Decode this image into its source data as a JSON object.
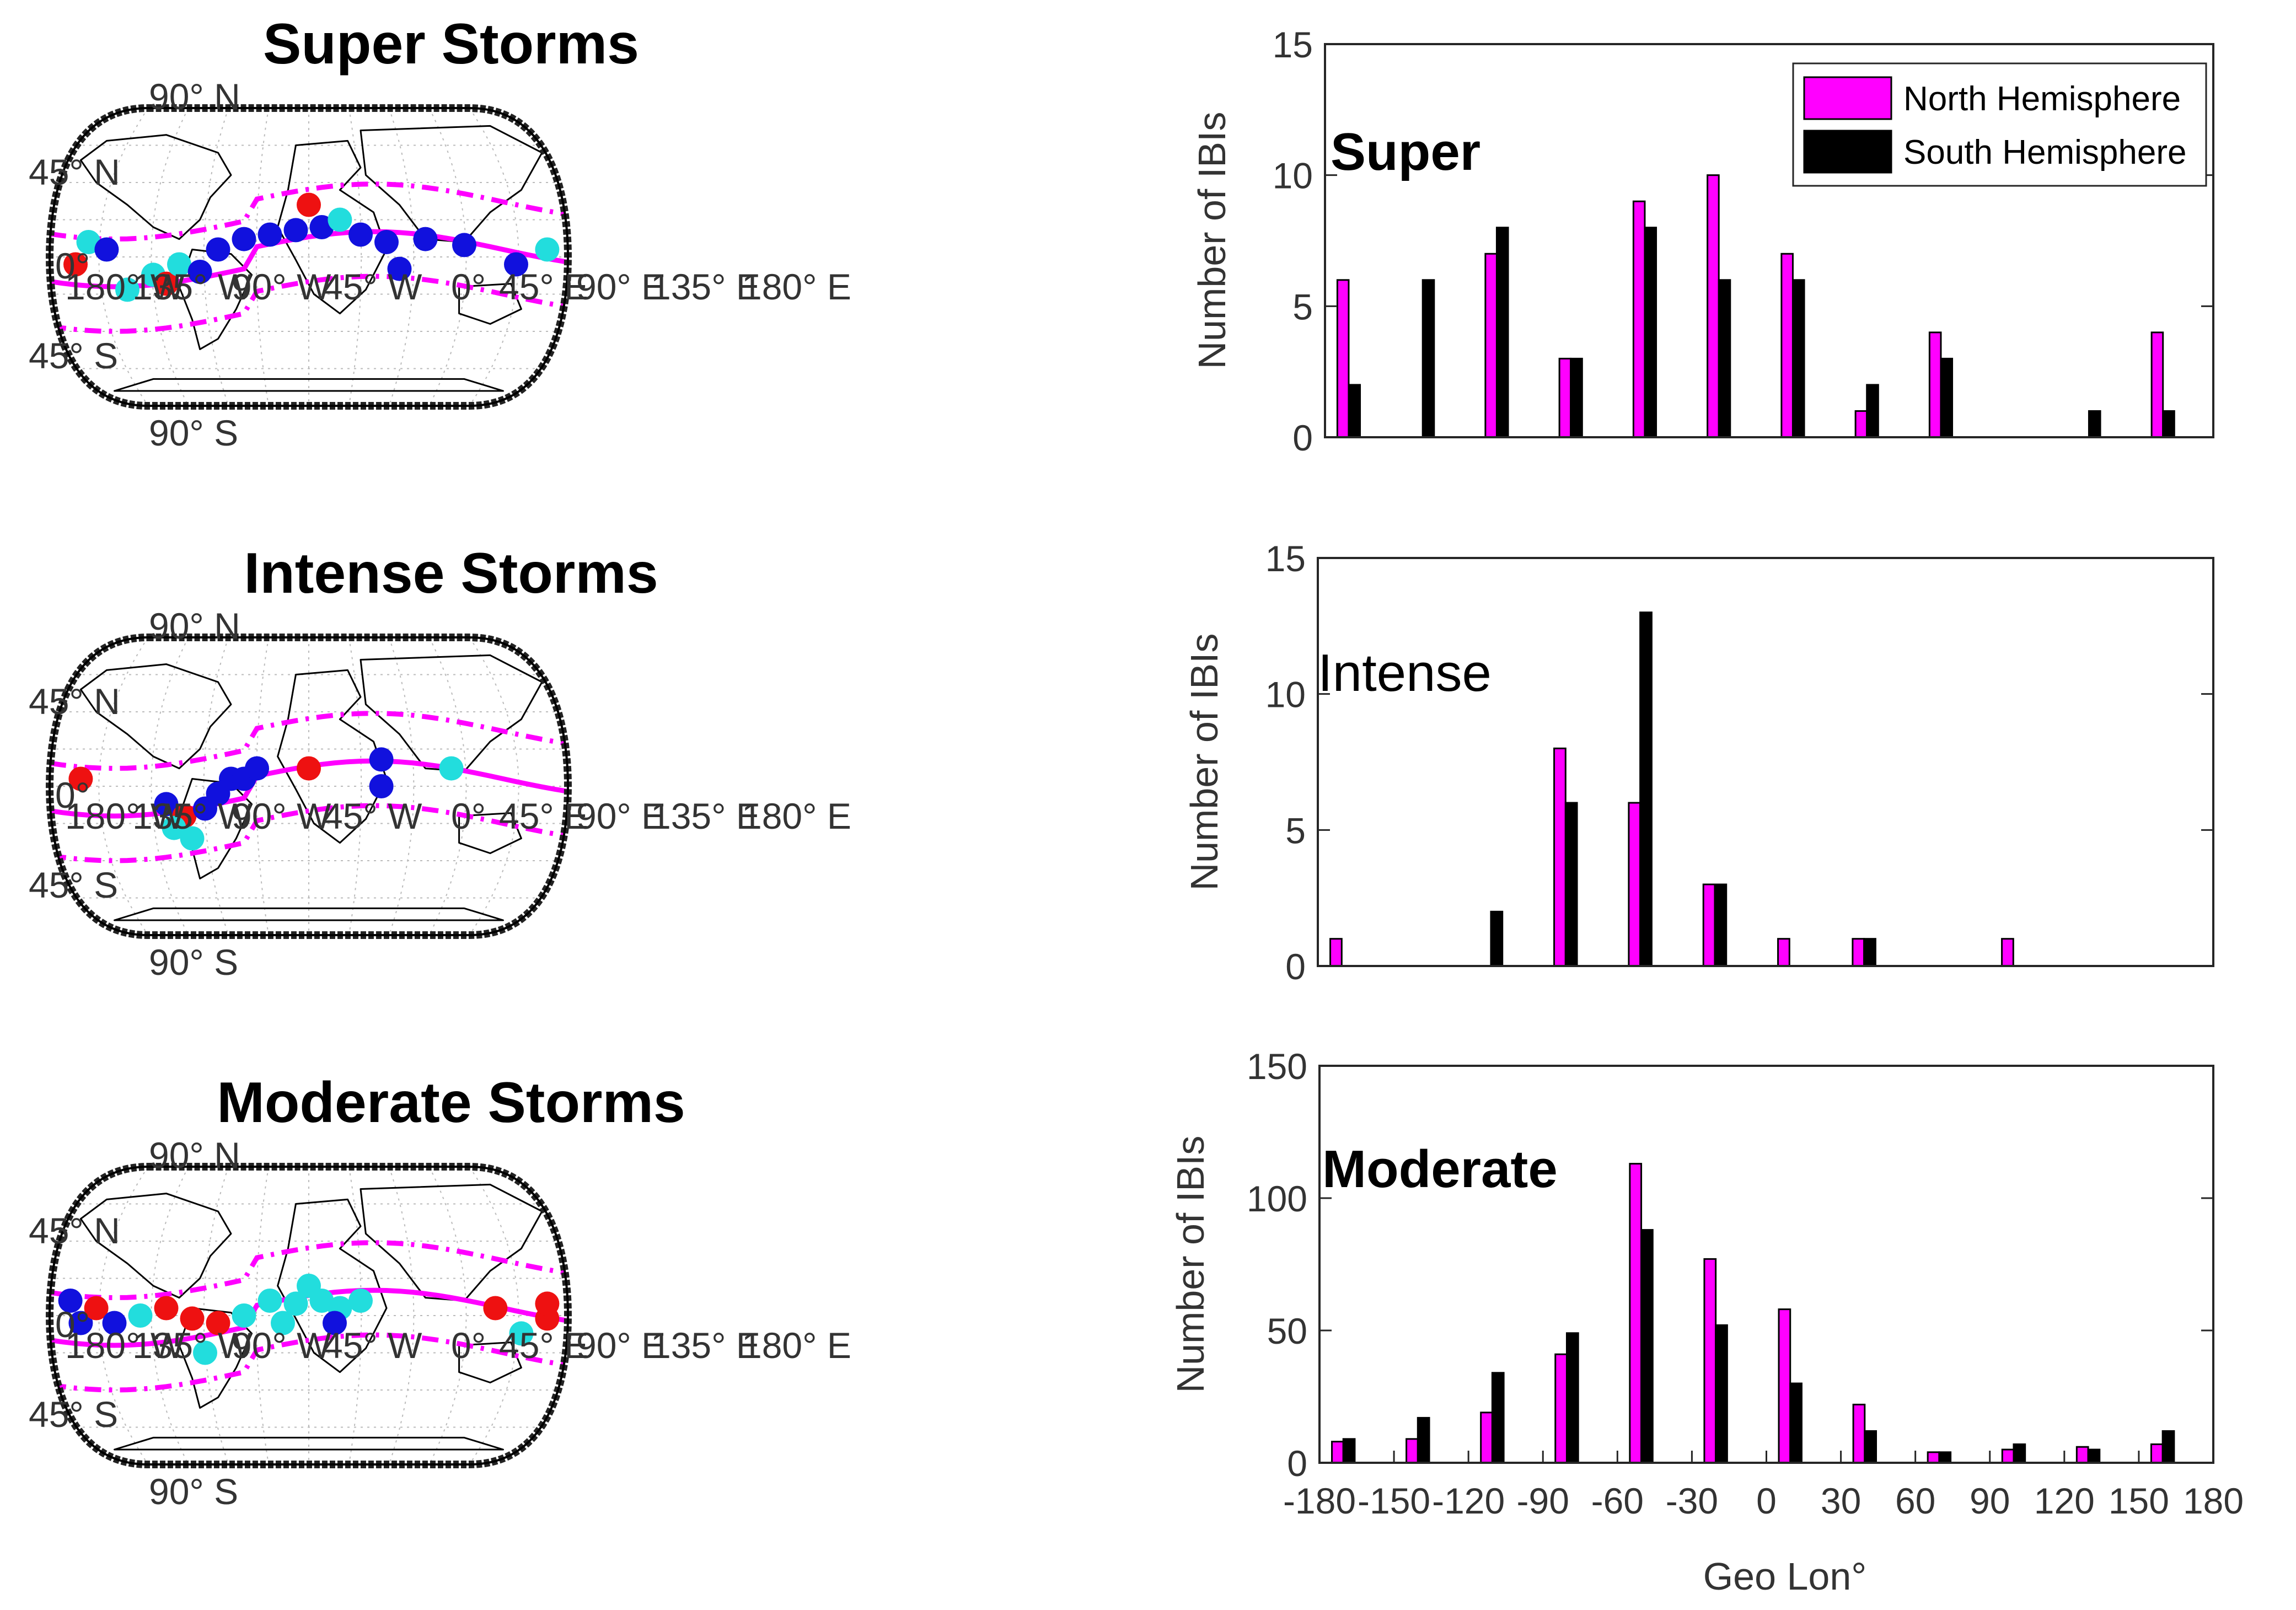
{
  "colors": {
    "north": "#ff00ff",
    "south": "#000000",
    "dot_red": "#ee1111",
    "dot_blue": "#1111dd",
    "dot_cyan": "#22dddd",
    "equator_line": "#ff00ff"
  },
  "maps": [
    {
      "title": "Super Storms",
      "lat_labels": [
        "90° N",
        "45° N",
        "0°",
        "45° S",
        "90° S"
      ],
      "lon_labels": [
        "180° W",
        "135° W",
        "90° W",
        "45° W",
        "0°",
        "45° E",
        "90° E",
        "135° E",
        "180° E"
      ]
    },
    {
      "title": "Intense Storms",
      "lat_labels": [
        "90° N",
        "45° N",
        "0°",
        "45° S",
        "90° S"
      ],
      "lon_labels": [
        "180° W",
        "135° W",
        "90° W",
        "45° W",
        "0°",
        "45° E",
        "90° E",
        "135° E",
        "180° E"
      ]
    },
    {
      "title": "Moderate Storms",
      "lat_labels": [
        "90° N",
        "45° N",
        "0°",
        "45° S",
        "90° S"
      ],
      "lon_labels": [
        "180° W",
        "135° W",
        "90° W",
        "45° W",
        "0°",
        "45° E",
        "90° E",
        "135° E",
        "180° E"
      ]
    }
  ],
  "chart_data": [
    {
      "type": "bar",
      "label": "Super",
      "ylabel": "Number of IBIs",
      "xlabel": "",
      "ylim": [
        0,
        15
      ],
      "yticks": [
        0,
        5,
        10,
        15
      ],
      "xlim": [
        -180,
        180
      ],
      "categories": [
        -165,
        -135,
        -105,
        -75,
        -45,
        -15,
        15,
        45,
        75,
        105,
        135,
        165
      ],
      "series": [
        {
          "name": "North Hemisphere",
          "values": [
            6,
            0,
            7,
            3,
            9,
            10,
            7,
            1,
            4,
            0,
            0,
            4
          ]
        },
        {
          "name": "South Hemisphere",
          "values": [
            2,
            6,
            8,
            3,
            8,
            6,
            6,
            2,
            3,
            0,
            1,
            1
          ]
        }
      ],
      "legend": "top-right"
    },
    {
      "type": "bar",
      "label": "Intense",
      "ylabel": "Number of IBIs",
      "xlabel": "",
      "ylim": [
        0,
        15
      ],
      "yticks": [
        0,
        5,
        10,
        15
      ],
      "xlim": [
        -180,
        180
      ],
      "categories": [
        -165,
        -135,
        -105,
        -75,
        -45,
        -15,
        15,
        45,
        75,
        105,
        135,
        165
      ],
      "series": [
        {
          "name": "North Hemisphere",
          "values": [
            1,
            0,
            0,
            8,
            6,
            3,
            1,
            1,
            0,
            1,
            0,
            0
          ]
        },
        {
          "name": "South Hemisphere",
          "values": [
            0,
            0,
            2,
            6,
            13,
            3,
            0,
            1,
            0,
            0,
            0,
            0
          ]
        }
      ]
    },
    {
      "type": "bar",
      "label": "Moderate",
      "ylabel": "Number of IBIs",
      "xlabel": "Geo Lon°",
      "ylim": [
        0,
        150
      ],
      "yticks": [
        0,
        50,
        100,
        150
      ],
      "xlim": [
        -180,
        180
      ],
      "xticks": [
        -180,
        -150,
        -120,
        -90,
        -60,
        -30,
        0,
        30,
        60,
        90,
        120,
        150,
        180
      ],
      "categories": [
        -165,
        -135,
        -105,
        -75,
        -45,
        -15,
        15,
        45,
        75,
        105,
        135,
        165
      ],
      "series": [
        {
          "name": "North Hemisphere",
          "values": [
            8,
            9,
            19,
            41,
            113,
            77,
            58,
            22,
            4,
            5,
            6,
            7
          ]
        },
        {
          "name": "South Hemisphere",
          "values": [
            9,
            17,
            34,
            49,
            88,
            52,
            30,
            12,
            4,
            7,
            5,
            12
          ]
        }
      ]
    }
  ]
}
